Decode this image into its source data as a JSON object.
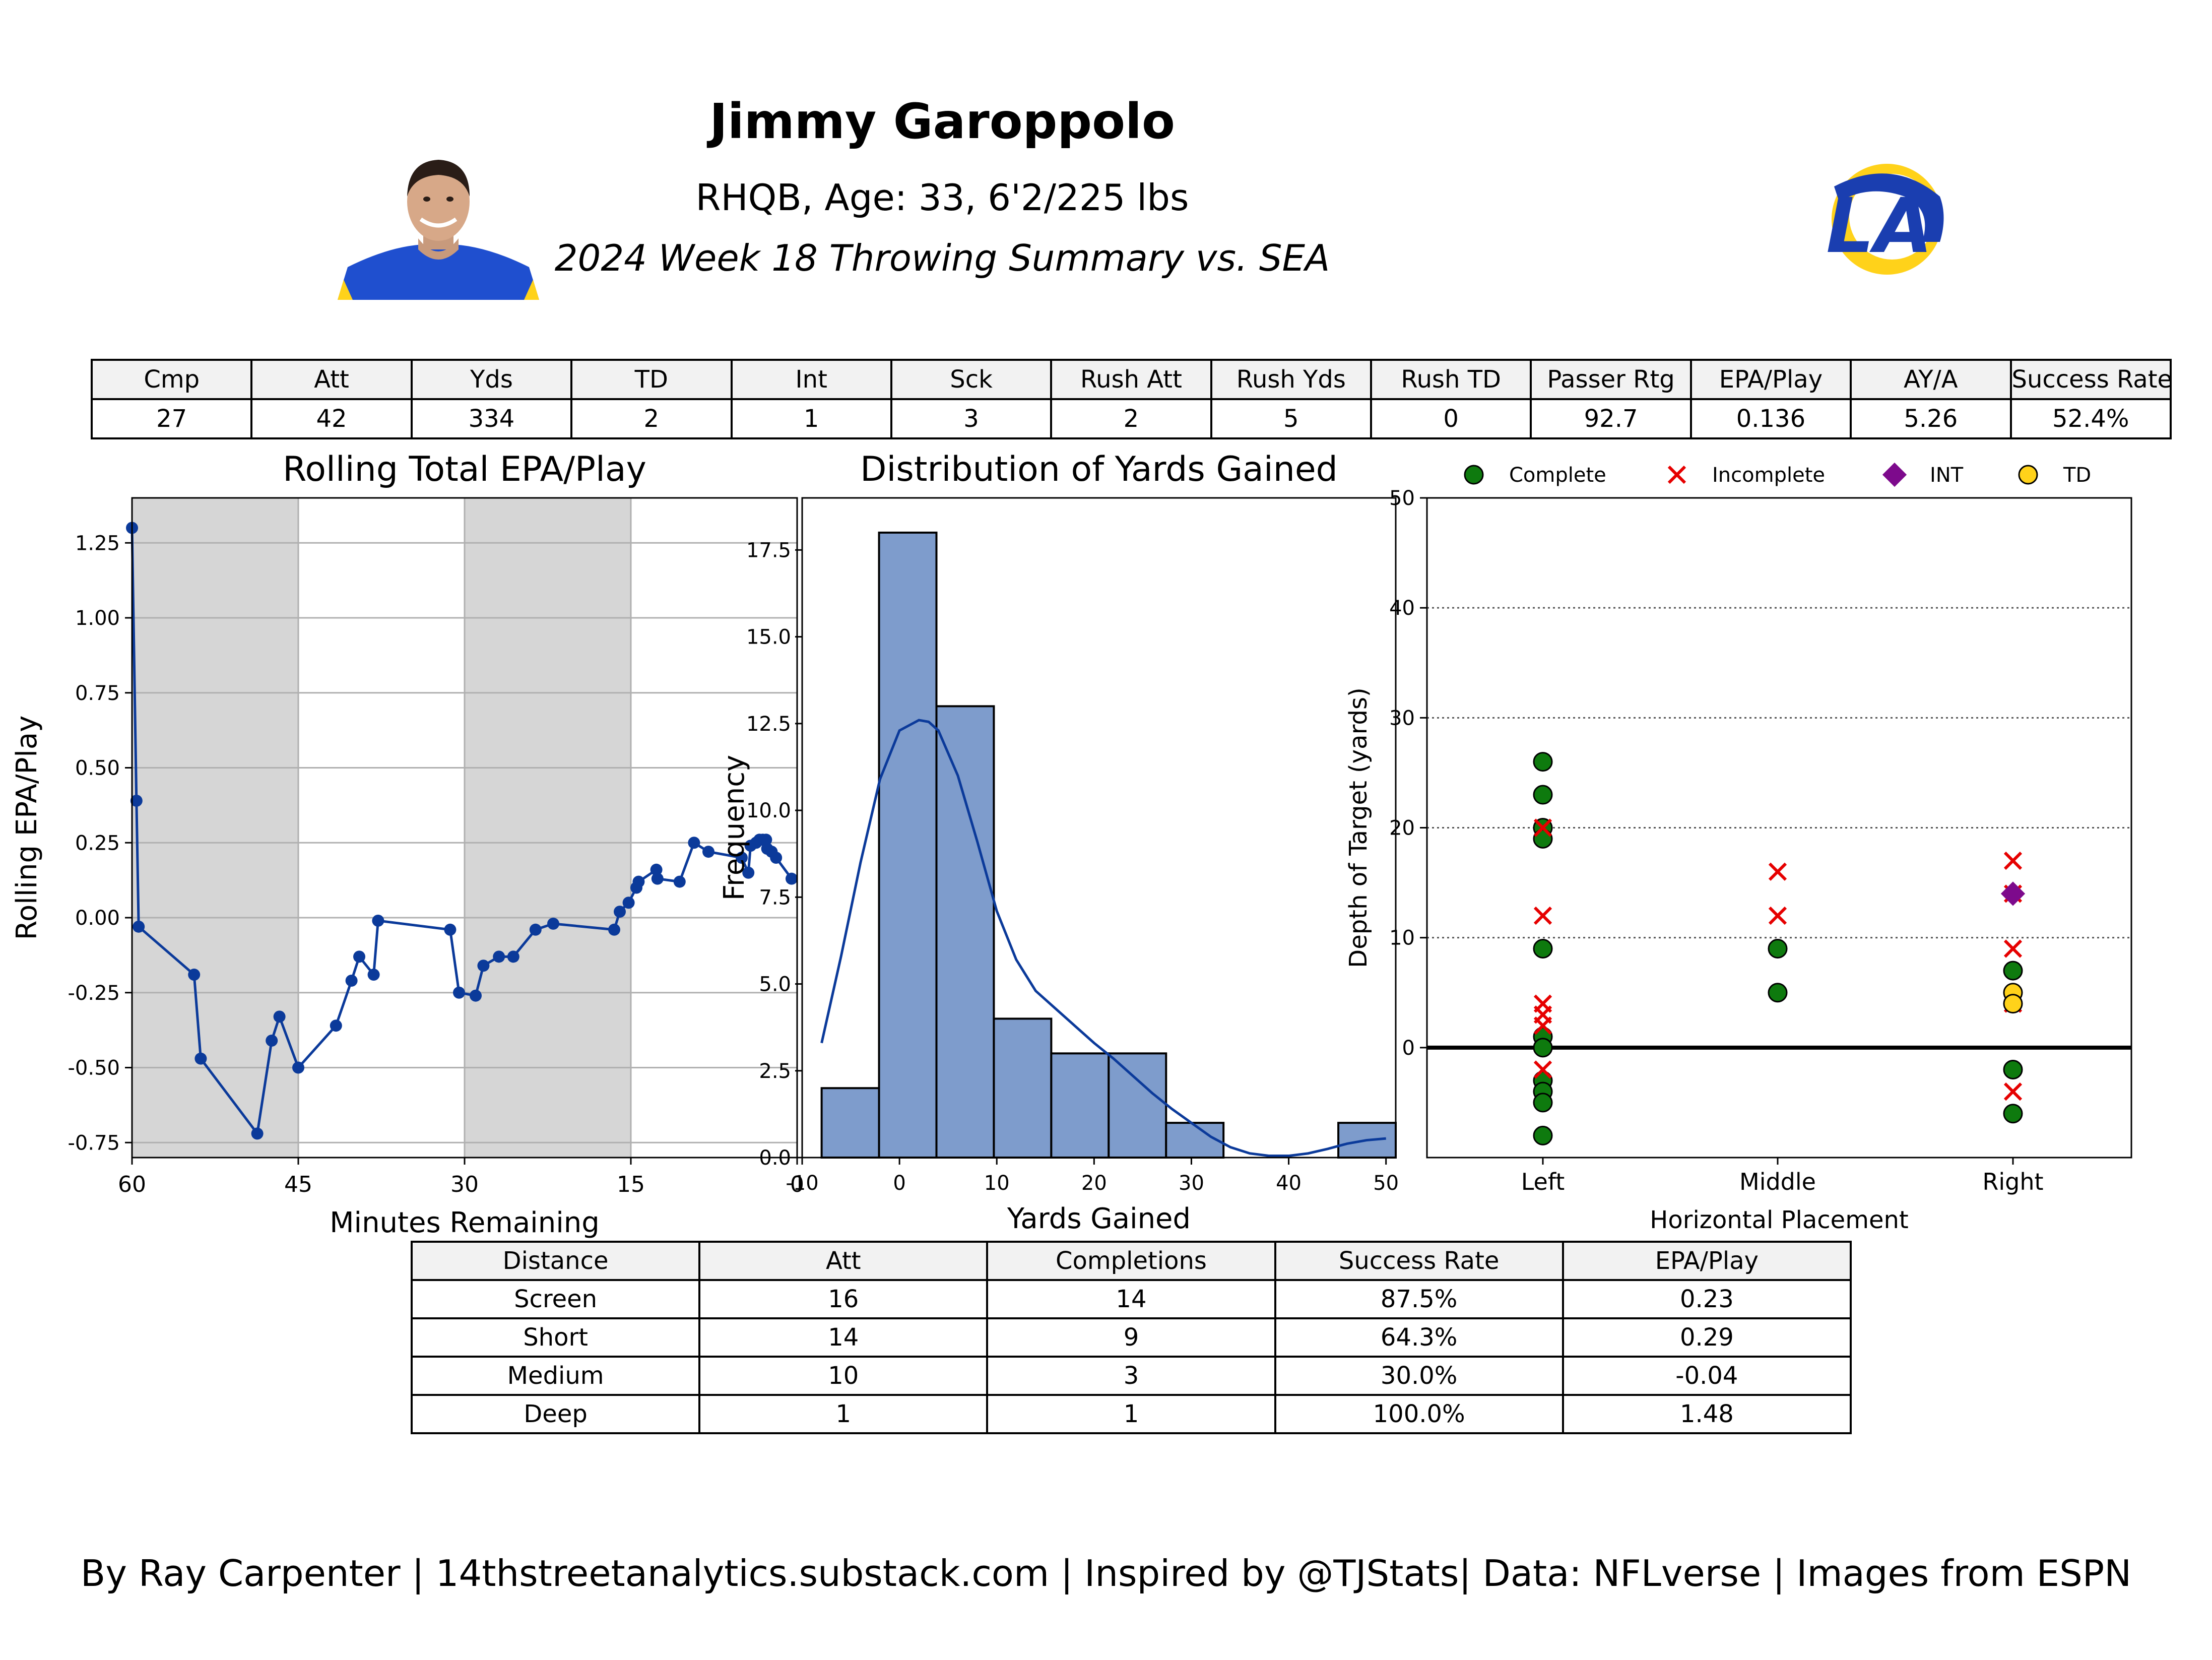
{
  "header": {
    "player_name": "Jimmy Garoppolo",
    "bio": "RHQB, Age: 33, 6'2/225 lbs",
    "summary": "2024 Week 18 Throwing Summary vs. SEA"
  },
  "images": {
    "headshot_icon": "player-headshot",
    "logo_icon": "rams-logo",
    "logo_text": "LA"
  },
  "stats_table": {
    "headers": [
      "Cmp",
      "Att",
      "Yds",
      "TD",
      "Int",
      "Sck",
      "Rush Att",
      "Rush Yds",
      "Rush TD",
      "Passer Rtg",
      "EPA/Play",
      "AY/A",
      "Success Rate"
    ],
    "values": [
      "27",
      "42",
      "334",
      "2",
      "1",
      "3",
      "2",
      "5",
      "0",
      "92.7",
      "0.136",
      "5.26",
      "52.4%"
    ]
  },
  "distance_table": {
    "headers": [
      "Distance",
      "Att",
      "Completions",
      "Success Rate",
      "EPA/Play"
    ],
    "rows": [
      [
        "Screen",
        "16",
        "14",
        "87.5%",
        "0.23"
      ],
      [
        "Short",
        "14",
        "9",
        "64.3%",
        "0.29"
      ],
      [
        "Medium",
        "10",
        "3",
        "30.0%",
        "-0.04"
      ],
      [
        "Deep",
        "1",
        "1",
        "100.0%",
        "1.48"
      ]
    ]
  },
  "colors": {
    "line": "#0b3a9a",
    "bar_fill": "#7e9ccc",
    "shade": "#d6d6d6",
    "complete": "#0e7a0e",
    "incomplete": "#e60000",
    "int": "#7d0a8c",
    "td": "#ffd21a"
  },
  "chart_data": [
    {
      "type": "line",
      "title": "Rolling Total EPA/Play",
      "xlabel": "Minutes Remaining",
      "ylabel": "Rolling EPA/Play",
      "xlim": [
        60,
        0
      ],
      "ylim": [
        -0.8,
        1.4
      ],
      "xticks": [
        "60",
        "45",
        "30",
        "15",
        "0"
      ],
      "yticks": [
        "-0.75",
        "-0.50",
        "-0.25",
        "0.00",
        "0.25",
        "0.50",
        "0.75",
        "1.00",
        "1.25"
      ],
      "grid": true,
      "shaded_quarters_minutes": [
        [
          60,
          45
        ],
        [
          30,
          15
        ]
      ],
      "x": [
        60.0,
        59.6,
        59.4,
        54.4,
        53.8,
        48.7,
        47.4,
        46.7,
        45.0,
        41.6,
        40.2,
        39.5,
        38.2,
        37.8,
        31.3,
        30.5,
        29.0,
        28.3,
        26.9,
        25.6,
        23.6,
        22.0,
        16.5,
        16.0,
        15.2,
        14.5,
        14.3,
        12.7,
        12.6,
        10.6,
        9.3,
        8.0,
        5.0,
        4.4,
        4.2,
        3.7,
        3.4,
        3.1,
        2.8,
        2.7,
        2.3,
        1.9,
        0.5
      ],
      "y": [
        1.3,
        0.39,
        -0.03,
        -0.19,
        -0.47,
        -0.72,
        -0.41,
        -0.33,
        -0.5,
        -0.36,
        -0.21,
        -0.13,
        -0.19,
        -0.01,
        -0.04,
        -0.25,
        -0.26,
        -0.16,
        -0.13,
        -0.13,
        -0.04,
        -0.02,
        -0.04,
        0.02,
        0.05,
        0.1,
        0.12,
        0.16,
        0.13,
        0.12,
        0.25,
        0.22,
        0.2,
        0.15,
        0.24,
        0.25,
        0.26,
        0.26,
        0.26,
        0.23,
        0.22,
        0.2,
        0.13
      ]
    },
    {
      "type": "bar",
      "title": "Distribution of Yards Gained",
      "xlabel": "Yards Gained",
      "ylabel": "Frequency",
      "xlim": [
        -10,
        51
      ],
      "ylim": [
        0,
        19
      ],
      "xticks": [
        "-10",
        "0",
        "10",
        "20",
        "30",
        "40",
        "50"
      ],
      "yticks": [
        "0.0",
        "2.5",
        "5.0",
        "7.5",
        "10.0",
        "12.5",
        "15.0",
        "17.5"
      ],
      "bin_edges": [
        -8,
        -2.1,
        3.8,
        9.7,
        15.6,
        21.5,
        27.4,
        33.3,
        39.2,
        45.1,
        51
      ],
      "counts": [
        2,
        18,
        13,
        4,
        3,
        3,
        1,
        0,
        0,
        1
      ],
      "kde_x": [
        -8,
        -6,
        -4,
        -2,
        0,
        2,
        3,
        4,
        6,
        8,
        10,
        12,
        14,
        16,
        18,
        20,
        22,
        24,
        26,
        28,
        30,
        32,
        34,
        36,
        38,
        40,
        42,
        44,
        46,
        48,
        50
      ],
      "kde_y": [
        3.3,
        5.8,
        8.5,
        10.9,
        12.3,
        12.6,
        12.55,
        12.3,
        11.0,
        9.1,
        7.1,
        5.7,
        4.8,
        4.3,
        3.8,
        3.3,
        2.85,
        2.35,
        1.85,
        1.4,
        1.0,
        0.6,
        0.3,
        0.12,
        0.05,
        0.05,
        0.12,
        0.25,
        0.4,
        0.5,
        0.55
      ]
    },
    {
      "type": "scatter",
      "title": "",
      "xlabel": "Horizontal Placement",
      "ylabel": "Depth of Target (yards)",
      "categories": [
        "Left",
        "Middle",
        "Right"
      ],
      "ylim": [
        -10,
        50
      ],
      "yticks": [
        "0",
        "10",
        "20",
        "30",
        "40",
        "50"
      ],
      "legend_position": "top",
      "series": [
        {
          "name": "Complete",
          "marker": "circle",
          "points": [
            [
              "Left",
              26
            ],
            [
              "Left",
              23
            ],
            [
              "Left",
              20
            ],
            [
              "Left",
              19
            ],
            [
              "Left",
              9
            ],
            [
              "Left",
              1
            ],
            [
              "Left",
              0
            ],
            [
              "Left",
              -3
            ],
            [
              "Left",
              -4
            ],
            [
              "Left",
              -5
            ],
            [
              "Left",
              -8
            ],
            [
              "Middle",
              9
            ],
            [
              "Middle",
              5
            ],
            [
              "Right",
              7
            ],
            [
              "Right",
              -2
            ],
            [
              "Right",
              -6
            ]
          ]
        },
        {
          "name": "Incomplete",
          "marker": "x",
          "points": [
            [
              "Left",
              20
            ],
            [
              "Left",
              12
            ],
            [
              "Left",
              4
            ],
            [
              "Left",
              3
            ],
            [
              "Left",
              2
            ],
            [
              "Left",
              -2
            ],
            [
              "Middle",
              16
            ],
            [
              "Middle",
              12
            ],
            [
              "Right",
              17
            ],
            [
              "Right",
              14
            ],
            [
              "Right",
              9
            ],
            [
              "Right",
              4
            ],
            [
              "Right",
              -4
            ]
          ]
        },
        {
          "name": "INT",
          "marker": "diamond",
          "points": [
            [
              "Right",
              14
            ]
          ]
        },
        {
          "name": "TD",
          "marker": "circle",
          "points": [
            [
              "Right",
              5
            ],
            [
              "Right",
              4
            ]
          ]
        }
      ]
    }
  ],
  "footer": {
    "credit": "By Ray Carpenter | 14thstreetanalytics.substack.com | Inspired by @TJStats| Data: NFLverse | Images from ESPN"
  }
}
